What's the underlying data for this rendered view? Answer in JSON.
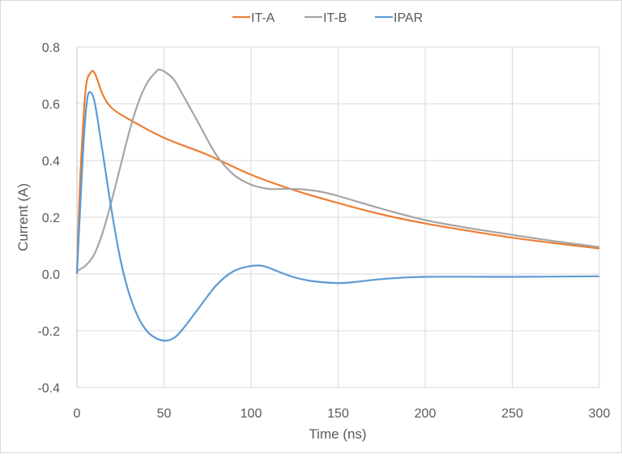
{
  "chart_data": {
    "type": "line",
    "title": "",
    "xlabel": "Time (ns)",
    "ylabel": "Current (A)",
    "xlim": [
      0,
      300
    ],
    "ylim": [
      -0.4,
      0.8
    ],
    "xticks": [
      0,
      50,
      100,
      150,
      200,
      250,
      300
    ],
    "xtick_labels": [
      "0",
      "50",
      "100",
      "150",
      "200",
      "250",
      "300"
    ],
    "yticks": [
      -0.4,
      -0.2,
      0.0,
      0.2,
      0.4,
      0.6,
      0.8
    ],
    "ytick_labels": [
      "-0.4",
      "-0.2",
      "0.0",
      "0.2",
      "0.4",
      "0.6",
      "0.8"
    ],
    "grid": true,
    "legend_position": "top",
    "series": [
      {
        "name": "IT-A",
        "color": "#ED7D31",
        "x": [
          0,
          2,
          5,
          8,
          10,
          12,
          15,
          20,
          30,
          50,
          75,
          100,
          125,
          150,
          175,
          200,
          225,
          250,
          275,
          300
        ],
        "y": [
          0,
          0.35,
          0.65,
          0.71,
          0.71,
          0.68,
          0.63,
          0.585,
          0.545,
          0.48,
          0.42,
          0.35,
          0.295,
          0.25,
          0.21,
          0.178,
          0.152,
          0.128,
          0.108,
          0.09
        ]
      },
      {
        "name": "IT-B",
        "color": "#A5A5A5",
        "x": [
          0,
          5,
          10,
          15,
          20,
          25,
          30,
          35,
          40,
          45,
          48,
          55,
          60,
          70,
          80,
          90,
          100,
          110,
          120,
          130,
          140,
          150,
          175,
          200,
          225,
          250,
          275,
          300
        ],
        "y": [
          0.01,
          0.03,
          0.07,
          0.15,
          0.26,
          0.38,
          0.5,
          0.6,
          0.67,
          0.71,
          0.72,
          0.69,
          0.64,
          0.53,
          0.42,
          0.35,
          0.315,
          0.3,
          0.3,
          0.298,
          0.29,
          0.275,
          0.23,
          0.19,
          0.162,
          0.138,
          0.115,
          0.095
        ]
      },
      {
        "name": "IPAR",
        "color": "#5B9BD5",
        "x": [
          0,
          2,
          4,
          6,
          8,
          10,
          12,
          15,
          20,
          25,
          30,
          35,
          40,
          45,
          50,
          55,
          60,
          70,
          80,
          90,
          100,
          107,
          115,
          125,
          135,
          150,
          160,
          175,
          200,
          250,
          300
        ],
        "y": [
          0,
          0.25,
          0.48,
          0.62,
          0.64,
          0.61,
          0.54,
          0.42,
          0.22,
          0.05,
          -0.07,
          -0.15,
          -0.2,
          -0.225,
          -0.235,
          -0.228,
          -0.2,
          -0.12,
          -0.04,
          0.01,
          0.028,
          0.028,
          0.01,
          -0.012,
          -0.025,
          -0.032,
          -0.028,
          -0.018,
          -0.01,
          -0.01,
          -0.008
        ]
      }
    ]
  }
}
